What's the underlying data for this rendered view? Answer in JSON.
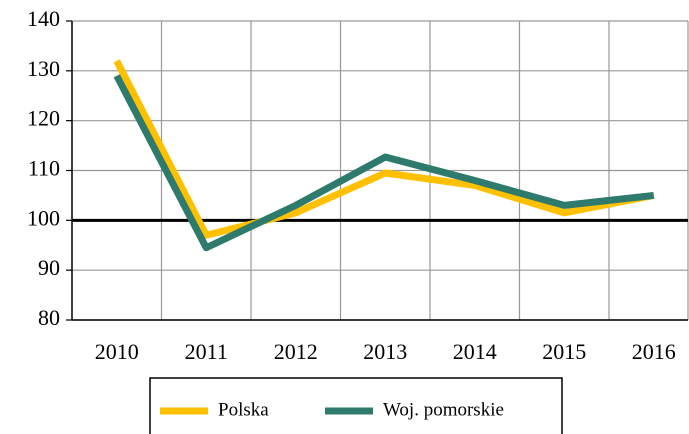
{
  "chart_data": {
    "type": "line",
    "categories": [
      "2010",
      "2011",
      "2012",
      "2013",
      "2014",
      "2015",
      "2016"
    ],
    "series": [
      {
        "name": "Polska",
        "color": "#ffc000",
        "values": [
          132,
          97,
          101.5,
          109.5,
          107,
          101.5,
          105
        ]
      },
      {
        "name": "Woj. pomorskie",
        "color": "#2e7a6c",
        "values": [
          129,
          94.5,
          103,
          112.7,
          108,
          103,
          105
        ]
      }
    ],
    "ylim": [
      80,
      140
    ],
    "yticks": [
      80,
      90,
      100,
      110,
      120,
      130,
      140
    ],
    "reference_line": 100,
    "grid": true
  }
}
